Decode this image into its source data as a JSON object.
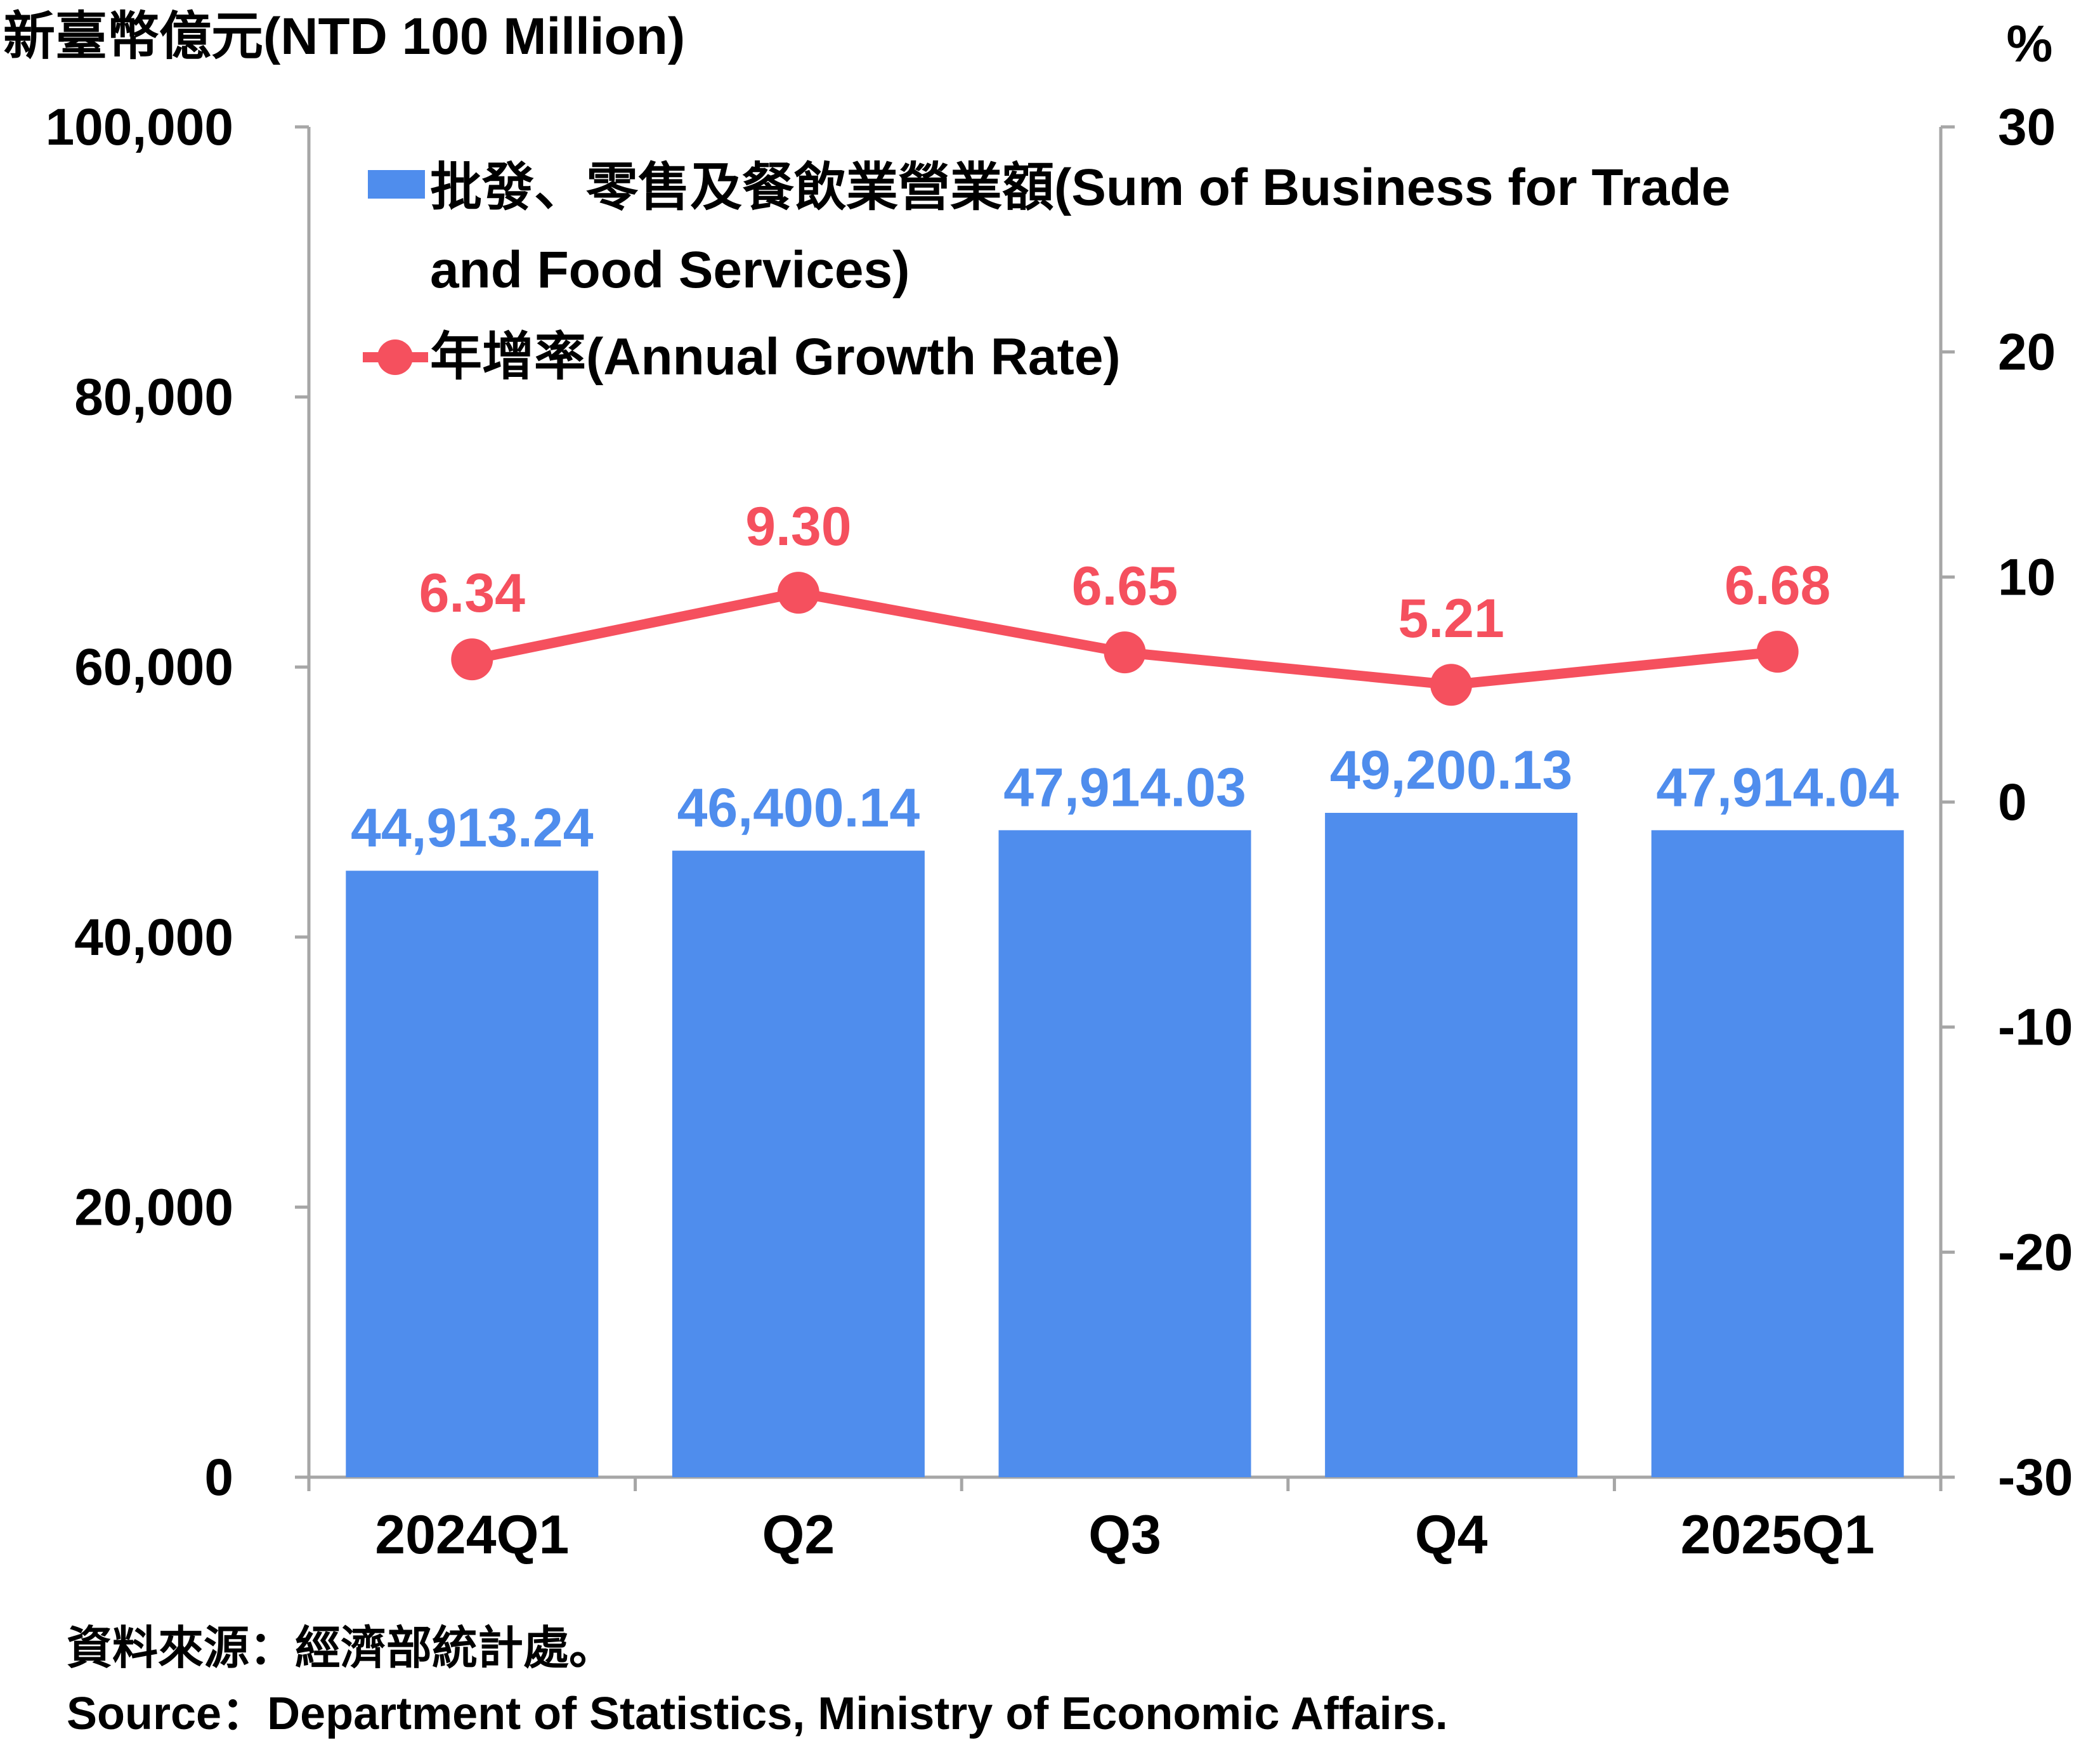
{
  "chart_data": {
    "type": "bar",
    "left_axis_unit": "新臺幣億元(NTD 100 Million)",
    "right_axis_unit": "%",
    "categories": [
      "2024Q1",
      "Q2",
      "Q3",
      "Q4",
      "2025Q1"
    ],
    "series": [
      {
        "name": "批發、零售及餐飲業營業額(Sum of Business for Trade and Food Services)",
        "legend_lines": [
          "批發、零售及餐飲業營業額(Sum of Business for Trade",
          "and Food Services)"
        ],
        "type": "bar",
        "axis": "left",
        "values": [
          44913.24,
          46400.14,
          47914.03,
          49200.13,
          47914.04
        ],
        "labels": [
          "44,913.24",
          "46,400.14",
          "47,914.03",
          "49,200.13",
          "47,914.04"
        ],
        "color": "#4f8ded"
      },
      {
        "name": "年增率(Annual Growth Rate)",
        "type": "line",
        "axis": "right",
        "values": [
          6.34,
          9.3,
          6.65,
          5.21,
          6.68
        ],
        "labels": [
          "6.34",
          "9.30",
          "6.65",
          "5.21",
          "6.68"
        ],
        "color": "#f5505e"
      }
    ],
    "left_axis": {
      "min": 0,
      "max": 100000,
      "step": 20000,
      "tick_labels": [
        "0",
        "20,000",
        "40,000",
        "60,000",
        "80,000",
        "100,000"
      ]
    },
    "right_axis": {
      "min": -30,
      "max": 30,
      "step": 10,
      "tick_labels": [
        "-30",
        "-20",
        "-10",
        "0",
        "10",
        "20",
        "30"
      ]
    },
    "grid": false,
    "legend_position": "top-left inside"
  },
  "source": {
    "zh": "資料來源：經濟部統計處。",
    "en": "Source：Department of Statistics, Ministry of Economic Affairs."
  },
  "colors": {
    "axis": "#a6a6a6",
    "text": "#000000",
    "bar": "#4f8ded",
    "line": "#f5505e"
  }
}
